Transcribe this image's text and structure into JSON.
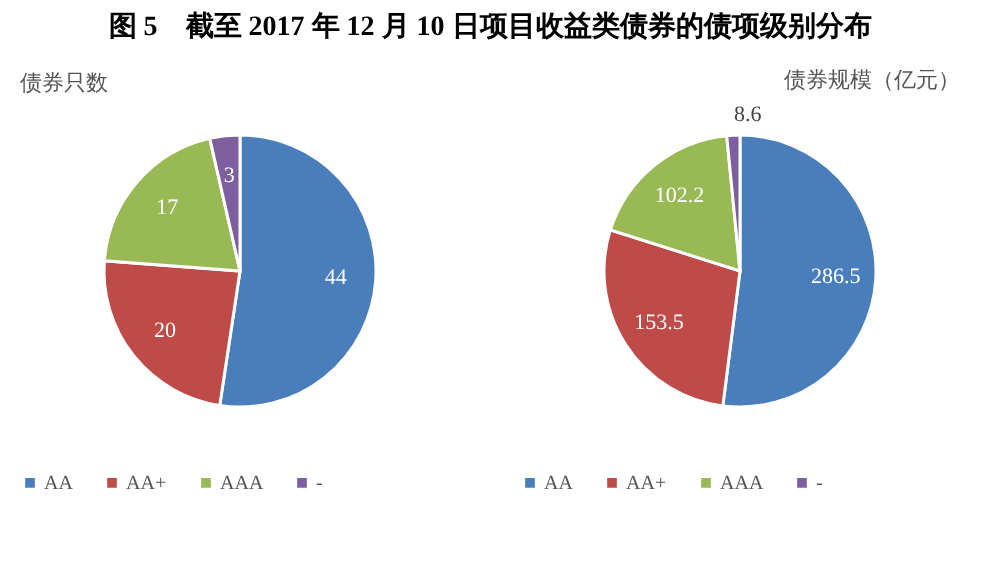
{
  "chart_data": [
    {
      "type": "pie",
      "title": "图 5　截至 2017 年 12 月 10 日项目收益类债券的债项级别分布",
      "subtitle": "债券只数",
      "categories": [
        "AA",
        "AA+",
        "AAA",
        "-"
      ],
      "values": [
        44,
        20,
        17,
        3
      ],
      "colors": [
        "#4a7ebb",
        "#be4b48",
        "#98b954",
        "#7d5fa0"
      ],
      "data_labels": true,
      "legend": "bottom"
    },
    {
      "type": "pie",
      "subtitle": "债券规模（亿元）",
      "categories": [
        "AA",
        "AA+",
        "AAA",
        "-"
      ],
      "values": [
        286.5,
        153.5,
        102.2,
        8.6
      ],
      "colors": [
        "#4a7ebb",
        "#be4b48",
        "#98b954",
        "#7d5fa0"
      ],
      "data_labels": true,
      "legend": "bottom"
    }
  ]
}
